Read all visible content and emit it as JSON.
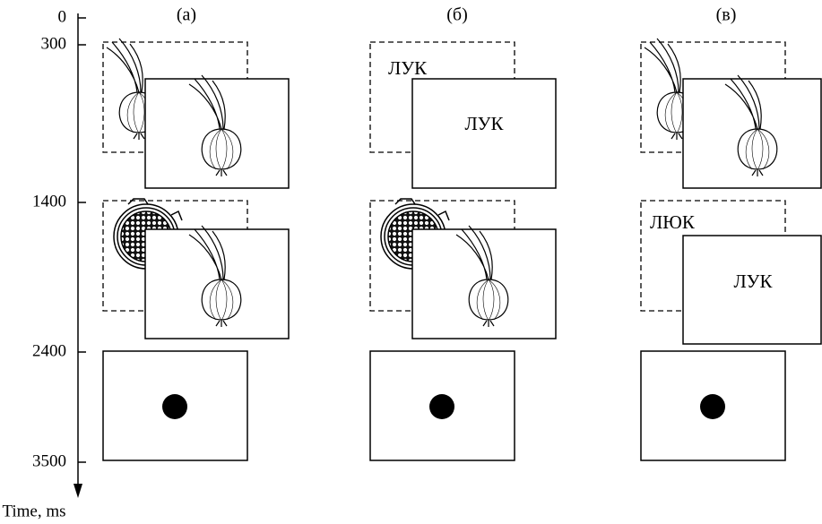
{
  "axis": {
    "label": "Time, ms",
    "ticks": [
      "0",
      "300",
      "1400",
      "2400",
      "3500"
    ]
  },
  "columns": [
    {
      "label": "(а)"
    },
    {
      "label": "(б)",
      "words": [
        "ЛУК",
        "ЛУК"
      ]
    },
    {
      "label": "(в)",
      "words": [
        "ЛЮК",
        "ЛУК"
      ]
    }
  ]
}
